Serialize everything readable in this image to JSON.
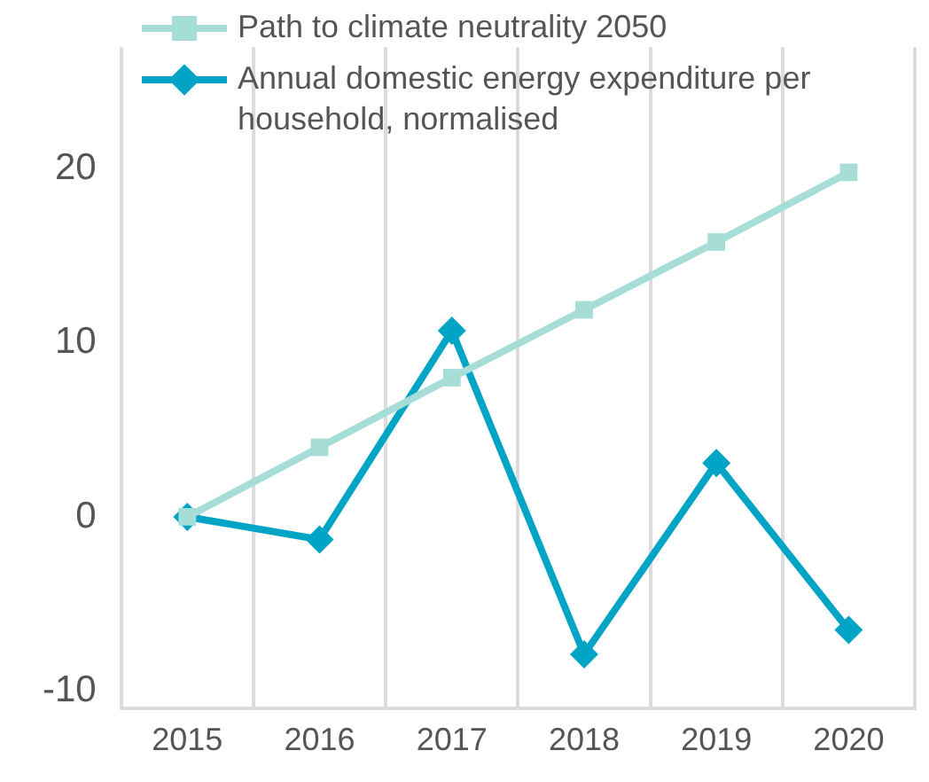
{
  "chart_data": {
    "type": "line",
    "categories": [
      "2015",
      "2016",
      "2017",
      "2018",
      "2019",
      "2020"
    ],
    "series": [
      {
        "name": "Path to climate neutrality 2050",
        "color": "#a6ddd7",
        "marker": "square",
        "values": [
          0,
          4.0,
          8.0,
          11.9,
          15.8,
          19.8
        ]
      },
      {
        "name": "Annual domestic energy expenditure per household, normalised",
        "color": "#00a5c6",
        "marker": "diamond",
        "values": [
          0,
          -1.3,
          10.7,
          -7.9,
          3.1,
          -6.5
        ]
      }
    ],
    "ylim": [
      -11,
      27
    ],
    "yticks": [
      -10,
      0,
      10,
      20
    ],
    "grid": "x",
    "legend": "top left"
  }
}
